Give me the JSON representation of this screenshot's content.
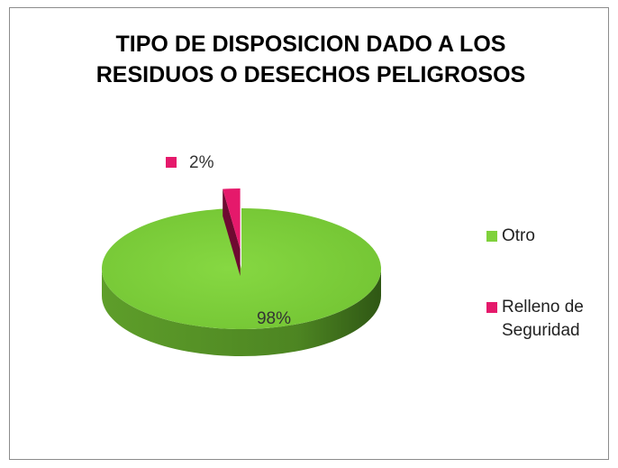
{
  "chart_data": {
    "type": "pie",
    "title": "TIPO DE DISPOSICION DADO A LOS RESIDUOS O DESECHOS PELIGROSOS",
    "categories": [
      "Otro",
      "Relleno de Seguridad"
    ],
    "values": [
      98,
      2
    ],
    "value_labels": [
      "98%",
      "2%"
    ],
    "colors": [
      "#7fd13b",
      "#e5196b"
    ],
    "legend": "right"
  }
}
